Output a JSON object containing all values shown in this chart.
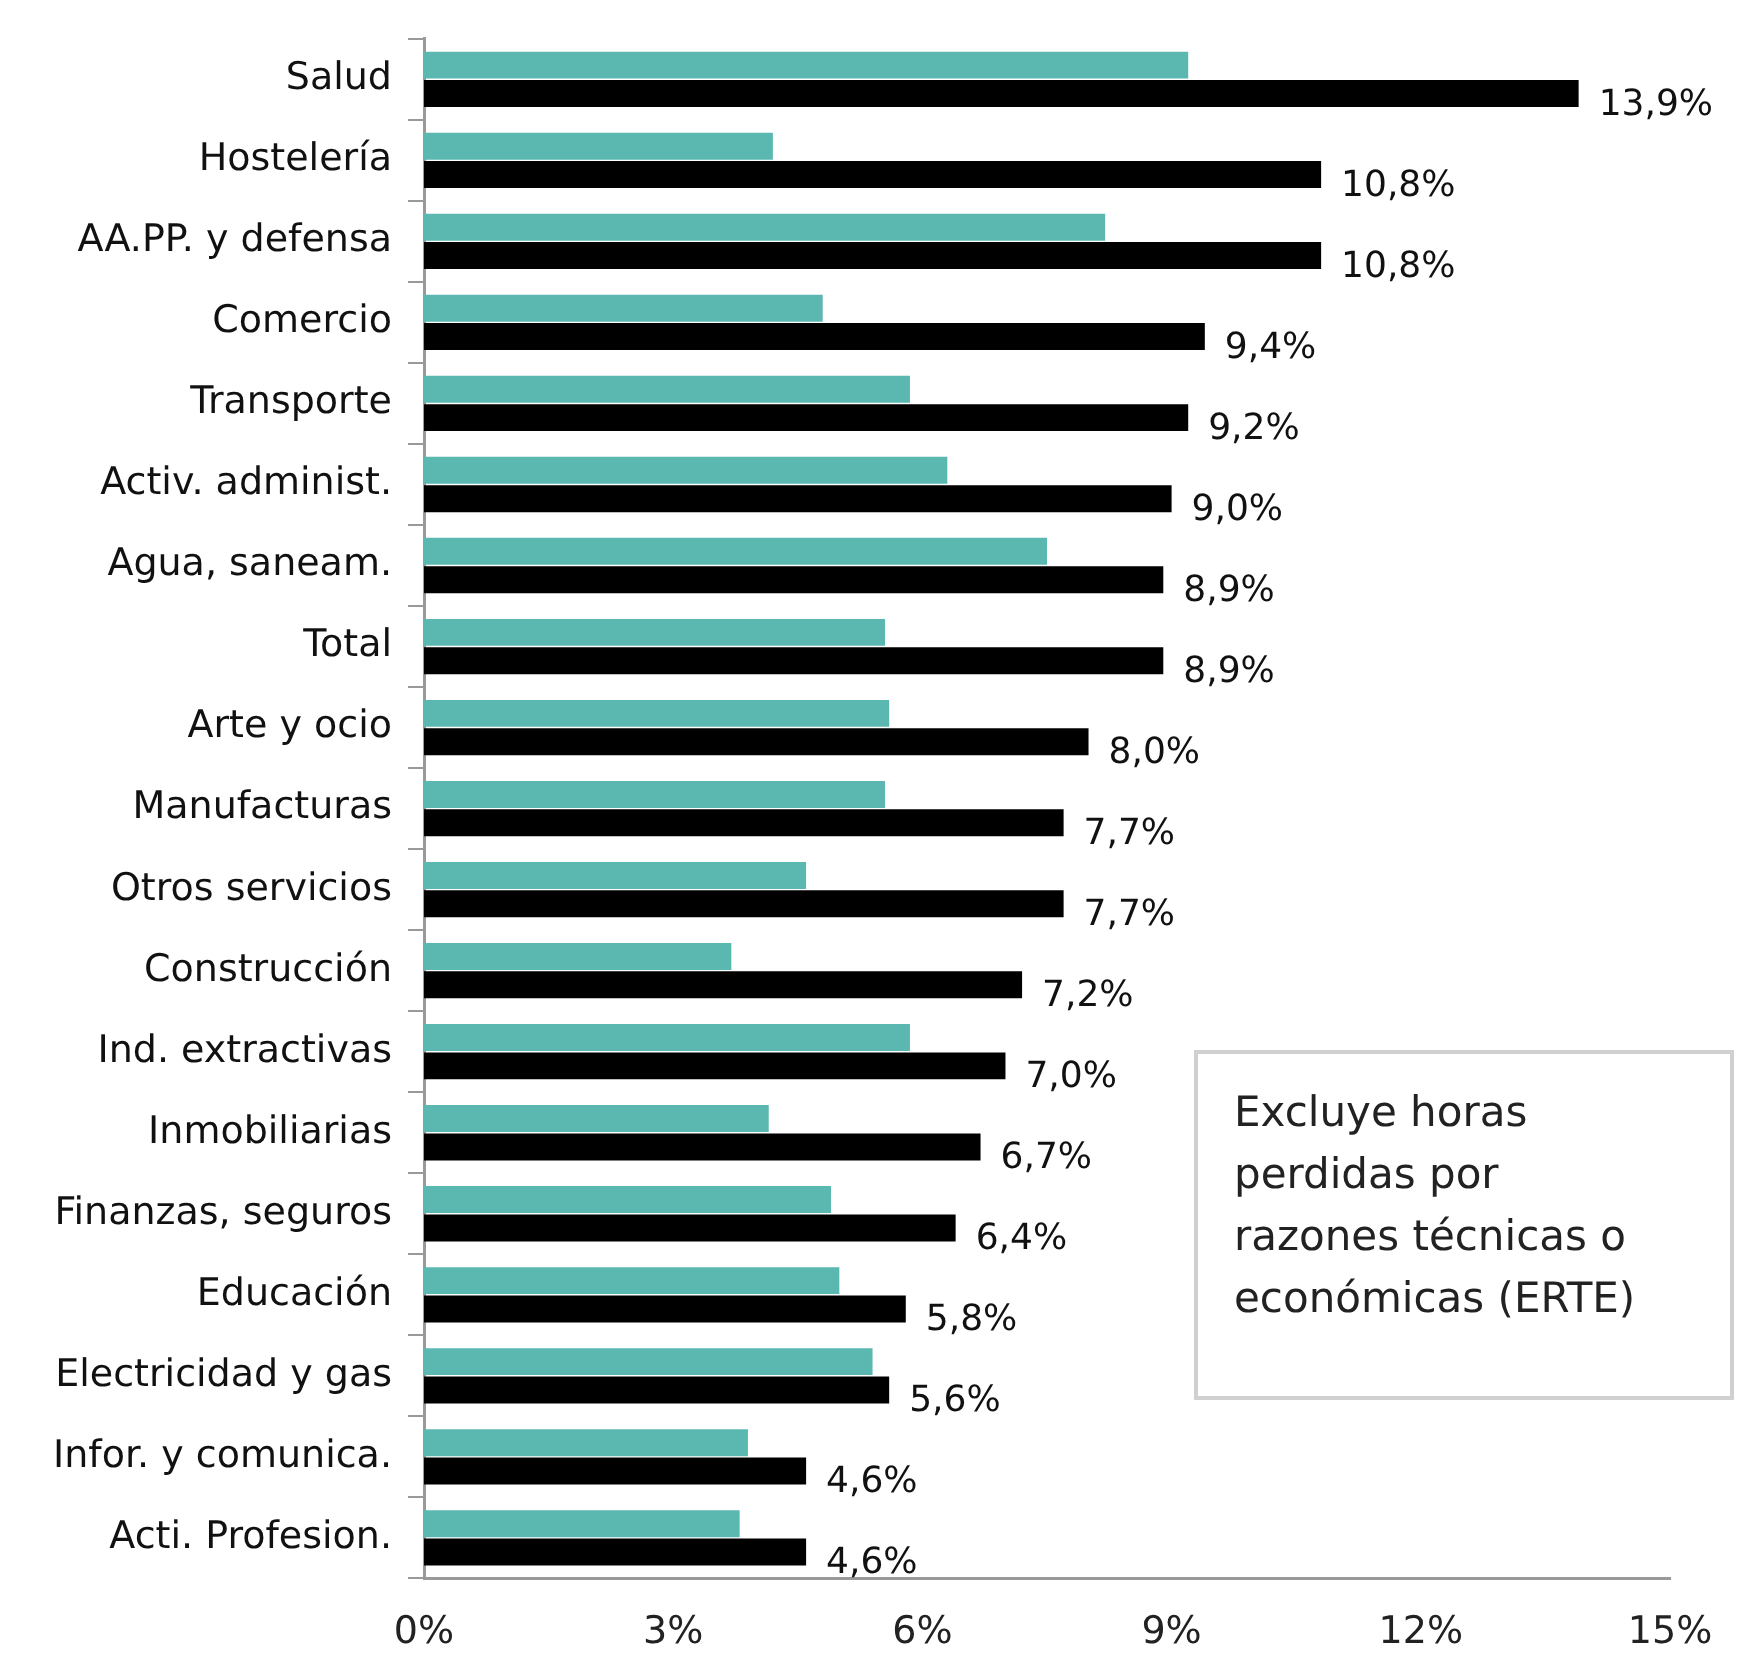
{
  "chart_data": {
    "type": "bar",
    "orientation": "horizontal",
    "categories": [
      "Salud",
      "Hostelería",
      "AA.PP. y defensa",
      "Comercio",
      "Transporte",
      "Activ. administ.",
      "Agua, saneam.",
      "Total",
      "Arte y ocio",
      "Manufacturas",
      "Otros servicios",
      "Construcción",
      "Ind. extractivas",
      "Inmobiliarias",
      "Finanzas, seguros",
      "Educación",
      "Electricidad y gas",
      "Infor. y comunica.",
      "Acti. Profesion."
    ],
    "series": [
      {
        "color": "#5bb8b0",
        "values": [
          9.2,
          4.2,
          8.2,
          4.8,
          5.85,
          6.3,
          7.5,
          5.55,
          5.6,
          5.55,
          4.6,
          3.7,
          5.85,
          4.15,
          4.9,
          5.0,
          5.4,
          3.9,
          3.8
        ]
      },
      {
        "color": "#000000",
        "values": [
          13.9,
          10.8,
          10.8,
          9.4,
          9.2,
          9.0,
          8.9,
          8.9,
          8.0,
          7.7,
          7.7,
          7.2,
          7.0,
          6.7,
          6.4,
          5.8,
          5.6,
          4.6,
          4.6
        ],
        "value_labels": [
          "13,9%",
          "10,8%",
          "10,8%",
          "9,4%",
          "9,2%",
          "9,0%",
          "8,9%",
          "8,9%",
          "8,0%",
          "7,7%",
          "7,7%",
          "7,2%",
          "7,0%",
          "6,7%",
          "6,4%",
          "5,8%",
          "5,6%",
          "4,6%",
          "4,6%"
        ]
      }
    ],
    "xlim": [
      0,
      15
    ],
    "xticks": [
      {
        "value": 0,
        "label": "0%"
      },
      {
        "value": 3,
        "label": "3%"
      },
      {
        "value": 6,
        "label": "6%"
      },
      {
        "value": 9,
        "label": "9%"
      },
      {
        "value": 12,
        "label": "12%"
      },
      {
        "value": 15,
        "label": "15%"
      }
    ],
    "grid": false,
    "legend": false,
    "annotations": [
      "Excluye horas perdidas por razones técnicas o económicas (ERTE)"
    ]
  }
}
